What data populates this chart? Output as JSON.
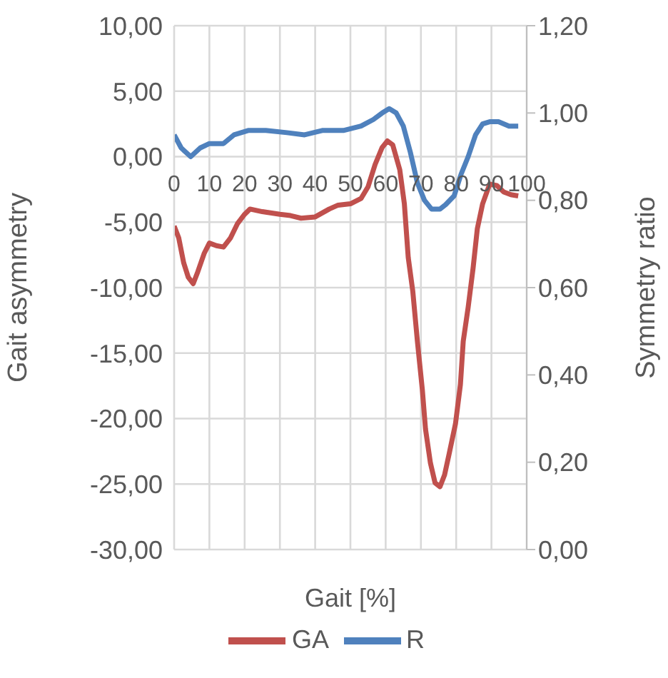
{
  "chart_data": {
    "type": "line",
    "xlabel": "Gait [%]",
    "ylabel": "Gait asymmetry",
    "y2label": "Symmetry ratio",
    "xlim": [
      0,
      100
    ],
    "xticks": [
      0,
      10,
      20,
      30,
      40,
      50,
      60,
      70,
      80,
      90,
      100
    ],
    "ylim": [
      -30,
      10
    ],
    "yticks": [
      {
        "value": -30,
        "label": "-30,00"
      },
      {
        "value": -25,
        "label": "-25,00"
      },
      {
        "value": -20,
        "label": "-20,00"
      },
      {
        "value": -15,
        "label": "-15,00"
      },
      {
        "value": -10,
        "label": "-10,00"
      },
      {
        "value": -5,
        "label": "-5,00"
      },
      {
        "value": 0,
        "label": "0,00"
      },
      {
        "value": 5,
        "label": "5,00"
      },
      {
        "value": 10,
        "label": "10,00"
      }
    ],
    "y2lim": [
      0,
      1.2
    ],
    "y2ticks": [
      {
        "value": 0,
        "label": "0,00"
      },
      {
        "value": 0.2,
        "label": "0,20"
      },
      {
        "value": 0.4,
        "label": "0,40"
      },
      {
        "value": 0.6,
        "label": "0,60"
      },
      {
        "value": 0.8,
        "label": "0,80"
      },
      {
        "value": 1,
        "label": "1,00"
      },
      {
        "value": 1.2,
        "label": "1,20"
      }
    ],
    "grid": true,
    "legend": "bottom",
    "marker": "none",
    "line_style": "solid",
    "series": [
      {
        "name": "GA",
        "color": "#c0504d",
        "x": [
          0,
          1.3,
          2.7,
          4,
          5.4,
          6.7,
          8.5,
          10,
          12,
          14,
          16,
          18,
          20,
          21.5,
          25,
          30,
          33,
          36,
          40,
          44,
          46.5,
          50,
          53,
          55,
          57,
          59,
          60.5,
          62,
          64,
          65.3,
          66.4,
          67.7,
          69,
          70.4,
          71.3,
          72.7,
          74,
          75.4,
          76.7,
          78,
          79.8,
          81.2,
          82,
          83.4,
          84.8,
          86,
          87.5,
          89.5,
          91.5,
          93.5,
          95.5,
          97.6
        ],
        "values": [
          -5.3,
          -6.2,
          -8.1,
          -9.2,
          -9.7,
          -8.8,
          -7.4,
          -6.6,
          -6.8,
          -6.9,
          -6.2,
          -5.1,
          -4.4,
          -4,
          -4.2,
          -4.4,
          -4.5,
          -4.7,
          -4.6,
          -4,
          -3.7,
          -3.6,
          -3.2,
          -2.3,
          -0.6,
          0.7,
          1.2,
          0.9,
          -1,
          -3.6,
          -7.7,
          -10.3,
          -14.1,
          -17.8,
          -20.8,
          -23.4,
          -24.9,
          -25.2,
          -24.3,
          -22.7,
          -20.4,
          -17.4,
          -14.1,
          -11.5,
          -8.5,
          -5.5,
          -3.6,
          -2.1,
          -2.2,
          -2.7,
          -2.9,
          -3
        ]
      },
      {
        "name": "R",
        "color": "#4f81bd",
        "axis": "y2",
        "x": [
          0,
          2,
          4.7,
          7.4,
          10,
          14,
          17,
          21,
          26,
          32,
          37,
          42,
          48,
          53,
          56.5,
          59,
          61,
          63,
          65,
          67,
          69,
          71,
          73,
          75.4,
          77,
          79.4,
          81.4,
          83.4,
          85.5,
          87.5,
          89.5,
          92,
          95,
          97.6
        ],
        "values": [
          0.95,
          0.92,
          0.9,
          0.92,
          0.93,
          0.93,
          0.95,
          0.96,
          0.96,
          0.955,
          0.95,
          0.96,
          0.96,
          0.97,
          0.985,
          1,
          1.01,
          1,
          0.97,
          0.91,
          0.84,
          0.8,
          0.78,
          0.78,
          0.79,
          0.81,
          0.86,
          0.9,
          0.95,
          0.975,
          0.98,
          0.98,
          0.97,
          0.97
        ]
      }
    ]
  }
}
